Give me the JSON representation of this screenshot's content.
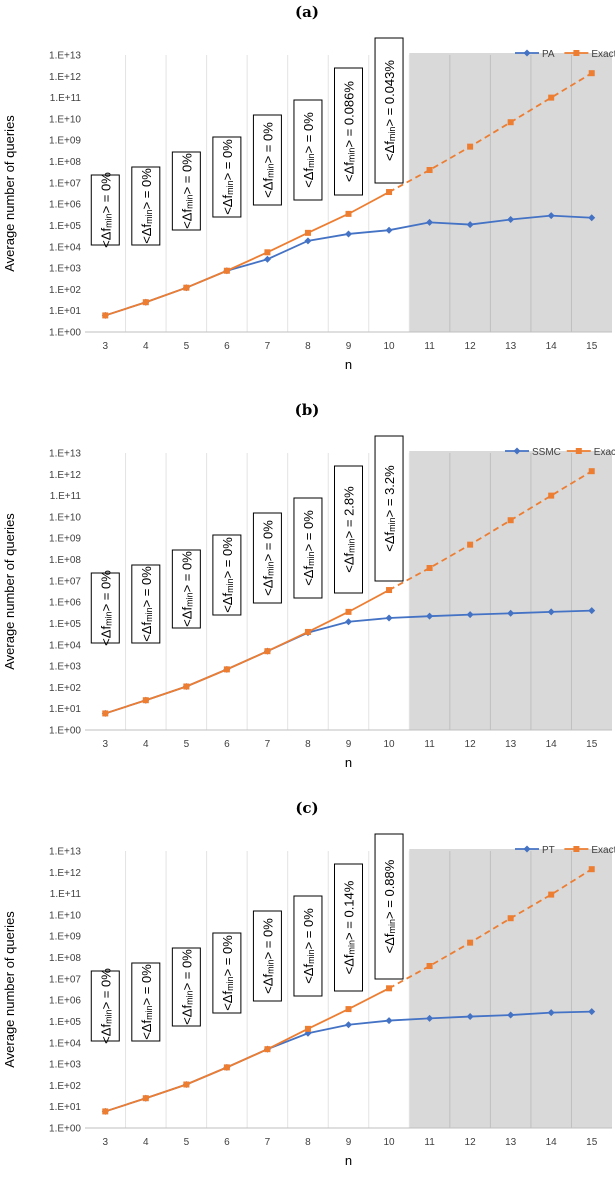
{
  "chart_data": [
    {
      "type": "line",
      "panel_label": "(a)",
      "xlabel": "n",
      "ylabel": "Average number of queries",
      "y_scale": "log",
      "ylim": [
        1,
        10000000000000.0
      ],
      "y_tick_labels": [
        "1.E+00",
        "1.E+01",
        "1.E+02",
        "1.E+03",
        "1.E+04",
        "1.E+05",
        "1.E+06",
        "1.E+07",
        "1.E+08",
        "1.E+09",
        "1.E+10",
        "1.E+11",
        "1.E+12",
        "1.E+13"
      ],
      "categories": [
        "3",
        "4",
        "5",
        "6",
        "7",
        "8",
        "9",
        "10",
        "11",
        "12",
        "13",
        "14",
        "15"
      ],
      "shaded_x_from": 11,
      "legend_position": "top-right",
      "vertical_gridlines": true,
      "series": [
        {
          "name": "PA",
          "color": "#4472c4",
          "marker": "diamond",
          "line": "solid",
          "x": [
            3,
            4,
            5,
            6,
            7,
            8,
            9,
            10,
            11,
            12,
            13,
            14,
            15
          ],
          "values": [
            6,
            25,
            120,
            750,
            2600,
            19000,
            40000,
            60000,
            140000,
            110000,
            190000,
            290000,
            230000
          ]
        },
        {
          "name": "Exact",
          "color": "#ed7d31",
          "marker": "square",
          "line": "solid-then-dashed",
          "dashed_from": 10,
          "x": [
            3,
            4,
            5,
            6,
            7,
            8,
            9,
            10,
            11,
            12,
            13,
            14,
            15
          ],
          "values": [
            6,
            25,
            120,
            750,
            5500,
            45000,
            350000,
            3700000,
            40000000,
            500000000,
            7000000000,
            100000000000,
            1400000000000
          ]
        }
      ],
      "annotations": [
        {
          "n": 3,
          "prefix": "<Δf",
          "sub": "min",
          "suffix": "> = 0%"
        },
        {
          "n": 4,
          "prefix": "<Δf",
          "sub": "min",
          "suffix": "> = 0%"
        },
        {
          "n": 5,
          "prefix": "<Δf",
          "sub": "min",
          "suffix": "> = 0%"
        },
        {
          "n": 6,
          "prefix": "<Δf",
          "sub": "min",
          "suffix": "> = 0%"
        },
        {
          "n": 7,
          "prefix": "<Δf",
          "sub": "min",
          "suffix": "> = 0%"
        },
        {
          "n": 8,
          "prefix": "<Δf",
          "sub": "min",
          "suffix": "> = 0%"
        },
        {
          "n": 9,
          "prefix": "<Δf",
          "sub": "min",
          "suffix": "> = 0.086%"
        },
        {
          "n": 10,
          "prefix": "<Δf",
          "sub": "min",
          "suffix": "> = 0.043%"
        }
      ]
    },
    {
      "type": "line",
      "panel_label": "(b)",
      "xlabel": "n",
      "ylabel": "Average number of queries",
      "y_scale": "log",
      "ylim": [
        1,
        10000000000000.0
      ],
      "y_tick_labels": [
        "1.E+00",
        "1.E+01",
        "1.E+02",
        "1.E+03",
        "1.E+04",
        "1.E+05",
        "1.E+06",
        "1.E+07",
        "1.E+08",
        "1.E+09",
        "1.E+10",
        "1.E+11",
        "1.E+12",
        "1.E+13"
      ],
      "categories": [
        "3",
        "4",
        "5",
        "6",
        "7",
        "8",
        "9",
        "10",
        "11",
        "12",
        "13",
        "14",
        "15"
      ],
      "shaded_x_from": 11,
      "legend_position": "top-right",
      "vertical_gridlines": true,
      "series": [
        {
          "name": "SSMC",
          "color": "#4472c4",
          "marker": "diamond",
          "line": "solid",
          "x": [
            3,
            4,
            5,
            6,
            7,
            8,
            9,
            10,
            11,
            12,
            13,
            14,
            15
          ],
          "values": [
            6,
            25,
            110,
            700,
            5000,
            37000,
            120000,
            180000,
            220000,
            260000,
            300000,
            350000,
            400000
          ]
        },
        {
          "name": "Exact",
          "color": "#ed7d31",
          "marker": "square",
          "line": "solid-then-dashed",
          "dashed_from": 10,
          "x": [
            3,
            4,
            5,
            6,
            7,
            8,
            9,
            10,
            11,
            12,
            13,
            14,
            15
          ],
          "values": [
            6,
            25,
            110,
            700,
            5000,
            40000,
            350000,
            3700000,
            40000000,
            500000000,
            7000000000,
            100000000000,
            1400000000000
          ]
        }
      ],
      "annotations": [
        {
          "n": 3,
          "prefix": "<Δf",
          "sub": "min",
          "suffix": "> = 0%"
        },
        {
          "n": 4,
          "prefix": "<Δf",
          "sub": "min",
          "suffix": "> = 0%"
        },
        {
          "n": 5,
          "prefix": "<Δf",
          "sub": "min",
          "suffix": "> = 0%"
        },
        {
          "n": 6,
          "prefix": "<Δf",
          "sub": "min",
          "suffix": "> = 0%"
        },
        {
          "n": 7,
          "prefix": "<Δf",
          "sub": "min",
          "suffix": "> = 0%"
        },
        {
          "n": 8,
          "prefix": "<Δf",
          "sub": "min",
          "suffix": "> = 0%"
        },
        {
          "n": 9,
          "prefix": "<Δf",
          "sub": "min",
          "suffix": "> = 2.8%"
        },
        {
          "n": 10,
          "prefix": "<Δf",
          "sub": "min",
          "suffix": "> = 3.2%"
        }
      ]
    },
    {
      "type": "line",
      "panel_label": "(c)",
      "xlabel": "n",
      "ylabel": "Average number of queries",
      "y_scale": "log",
      "ylim": [
        1,
        10000000000000.0
      ],
      "y_tick_labels": [
        "1.E+00",
        "1.E+01",
        "1.E+02",
        "1.E+03",
        "1.E+04",
        "1.E+05",
        "1.E+06",
        "1.E+07",
        "1.E+08",
        "1.E+09",
        "1.E+10",
        "1.E+11",
        "1.E+12",
        "1.E+13"
      ],
      "categories": [
        "3",
        "4",
        "5",
        "6",
        "7",
        "8",
        "9",
        "10",
        "11",
        "12",
        "13",
        "14",
        "15"
      ],
      "shaded_x_from": 11,
      "legend_position": "top-right",
      "vertical_gridlines": true,
      "series": [
        {
          "name": "PT",
          "color": "#4472c4",
          "marker": "diamond",
          "line": "solid",
          "x": [
            3,
            4,
            5,
            6,
            7,
            8,
            9,
            10,
            11,
            12,
            13,
            14,
            15
          ],
          "values": [
            6,
            25,
            110,
            700,
            5000,
            28000,
            70000,
            110000,
            140000,
            170000,
            200000,
            260000,
            290000
          ]
        },
        {
          "name": "Exact",
          "color": "#ed7d31",
          "marker": "square",
          "line": "solid-then-dashed",
          "dashed_from": 10,
          "x": [
            3,
            4,
            5,
            6,
            7,
            8,
            9,
            10,
            11,
            12,
            13,
            14,
            15
          ],
          "values": [
            6,
            25,
            110,
            700,
            5000,
            45000,
            380000,
            3600000,
            40000000,
            500000000,
            7000000000,
            90000000000,
            1400000000000
          ]
        }
      ],
      "annotations": [
        {
          "n": 3,
          "prefix": "<Δf",
          "sub": "min",
          "suffix": "> = 0%"
        },
        {
          "n": 4,
          "prefix": "<Δf",
          "sub": "min",
          "suffix": "> = 0%"
        },
        {
          "n": 5,
          "prefix": "<Δf",
          "sub": "min",
          "suffix": "> = 0%"
        },
        {
          "n": 6,
          "prefix": "<Δf",
          "sub": "min",
          "suffix": "> = 0%"
        },
        {
          "n": 7,
          "prefix": "<Δf",
          "sub": "min",
          "suffix": "> = 0%"
        },
        {
          "n": 8,
          "prefix": "<Δf",
          "sub": "min",
          "suffix": "> = 0%"
        },
        {
          "n": 9,
          "prefix": "<Δf",
          "sub": "min",
          "suffix": "> = 0.14%"
        },
        {
          "n": 10,
          "prefix": "<Δf",
          "sub": "min",
          "suffix": "> = 0.88%"
        }
      ]
    }
  ]
}
